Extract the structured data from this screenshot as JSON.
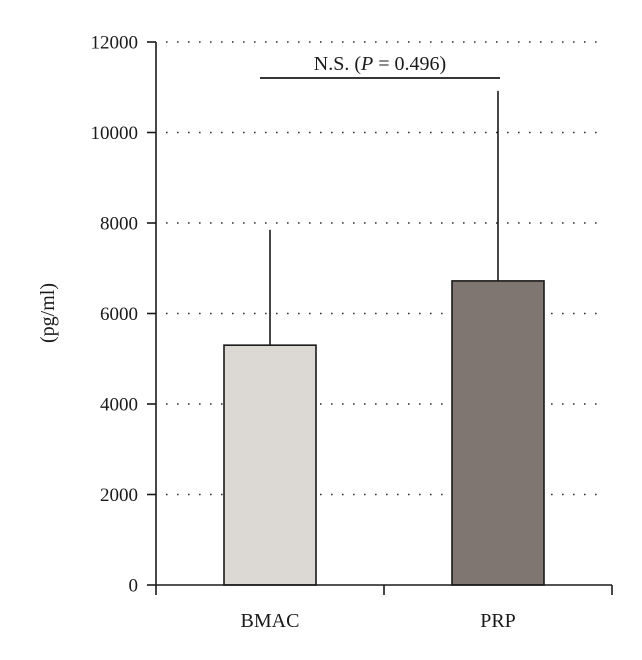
{
  "chart_data": {
    "type": "bar",
    "title": "",
    "xlabel": "",
    "ylabel": "(pg/ml)",
    "categories": [
      "BMAC",
      "PRP"
    ],
    "values": [
      5300,
      6720
    ],
    "error_upper": [
      7850,
      10920
    ],
    "ylim": [
      0,
      12000
    ],
    "yticks": [
      0,
      2000,
      4000,
      6000,
      8000,
      10000,
      12000
    ],
    "ytick_labels": [
      "0",
      "2000",
      "4000",
      "6000",
      "8000",
      "10000",
      "12000"
    ],
    "grid": "dotted horizontal",
    "bar_colors": [
      "#dcd8d4",
      "#7f7671"
    ],
    "annotation": {
      "prefix": "N.S. (",
      "p_symbol": "P",
      "suffix": " = 0.496)"
    }
  }
}
